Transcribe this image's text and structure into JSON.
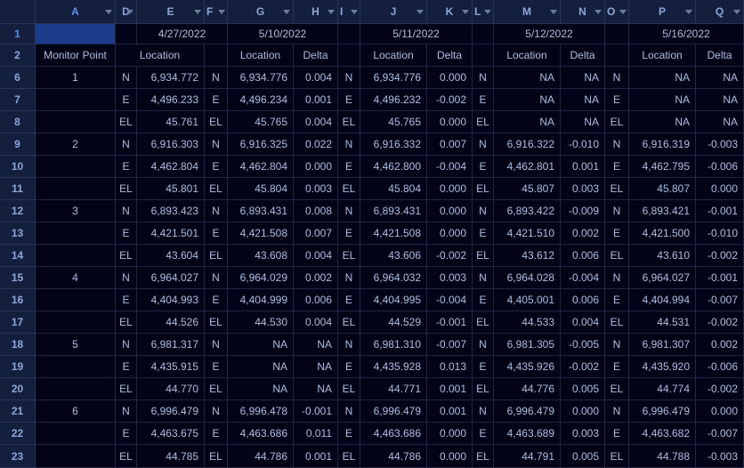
{
  "columns": [
    "A",
    "D",
    "E",
    "F",
    "G",
    "H",
    "I",
    "J",
    "K",
    "L",
    "M",
    "N",
    "O",
    "P",
    "Q"
  ],
  "dates": {
    "E": "4/27/2022",
    "G": "5/10/2022",
    "J": "5/11/2022",
    "M": "5/12/2022",
    "P": "5/16/2022"
  },
  "labels": {
    "monitor_point": "Monitor Point",
    "location": "Location",
    "delta": "Delta"
  },
  "row_numbers": [
    "1",
    "2",
    "6",
    "7",
    "8",
    "9",
    "10",
    "11",
    "12",
    "13",
    "14",
    "15",
    "16",
    "17",
    "18",
    "19",
    "20",
    "21",
    "22",
    "23"
  ],
  "rows": [
    {
      "A": "1",
      "D": "N",
      "E": "6,934.772",
      "F": "N",
      "G": "6,934.776",
      "H": "0.004",
      "I": "N",
      "J": "6,934.776",
      "K": "0.000",
      "L": "N",
      "M": "NA",
      "N": "NA",
      "O": "N",
      "P": "NA",
      "Q": "NA"
    },
    {
      "A": "",
      "D": "E",
      "E": "4,496.233",
      "F": "E",
      "G": "4,496.234",
      "H": "0.001",
      "I": "E",
      "J": "4,496.232",
      "K": "-0.002",
      "L": "E",
      "M": "NA",
      "N": "NA",
      "O": "E",
      "P": "NA",
      "Q": "NA"
    },
    {
      "A": "",
      "D": "EL",
      "E": "45.761",
      "F": "EL",
      "G": "45.765",
      "H": "0.004",
      "I": "EL",
      "J": "45.765",
      "K": "0.000",
      "L": "EL",
      "M": "NA",
      "N": "NA",
      "O": "EL",
      "P": "NA",
      "Q": "NA"
    },
    {
      "A": "2",
      "D": "N",
      "E": "6,916.303",
      "F": "N",
      "G": "6,916.325",
      "H": "0.022",
      "I": "N",
      "J": "6,916.332",
      "K": "0.007",
      "L": "N",
      "M": "6,916.322",
      "N": "-0.010",
      "O": "N",
      "P": "6,916.319",
      "Q": "-0.003"
    },
    {
      "A": "",
      "D": "E",
      "E": "4,462.804",
      "F": "E",
      "G": "4,462.804",
      "H": "0.000",
      "I": "E",
      "J": "4,462.800",
      "K": "-0.004",
      "L": "E",
      "M": "4,462.801",
      "N": "0.001",
      "O": "E",
      "P": "4,462.795",
      "Q": "-0.006"
    },
    {
      "A": "",
      "D": "EL",
      "E": "45.801",
      "F": "EL",
      "G": "45.804",
      "H": "0.003",
      "I": "EL",
      "J": "45.804",
      "K": "0.000",
      "L": "EL",
      "M": "45.807",
      "N": "0.003",
      "O": "EL",
      "P": "45.807",
      "Q": "0.000"
    },
    {
      "A": "3",
      "D": "N",
      "E": "6,893.423",
      "F": "N",
      "G": "6,893.431",
      "H": "0.008",
      "I": "N",
      "J": "6,893.431",
      "K": "0.000",
      "L": "N",
      "M": "6,893.422",
      "N": "-0.009",
      "O": "N",
      "P": "6,893.421",
      "Q": "-0.001"
    },
    {
      "A": "",
      "D": "E",
      "E": "4,421.501",
      "F": "E",
      "G": "4,421.508",
      "H": "0.007",
      "I": "E",
      "J": "4,421.508",
      "K": "0.000",
      "L": "E",
      "M": "4,421.510",
      "N": "0.002",
      "O": "E",
      "P": "4,421.500",
      "Q": "-0.010"
    },
    {
      "A": "",
      "D": "EL",
      "E": "43.604",
      "F": "EL",
      "G": "43.608",
      "H": "0.004",
      "I": "EL",
      "J": "43.606",
      "K": "-0.002",
      "L": "EL",
      "M": "43.612",
      "N": "0.006",
      "O": "EL",
      "P": "43.610",
      "Q": "-0.002"
    },
    {
      "A": "4",
      "D": "N",
      "E": "6,964.027",
      "F": "N",
      "G": "6,964.029",
      "H": "0.002",
      "I": "N",
      "J": "6,964.032",
      "K": "0.003",
      "L": "N",
      "M": "6,964.028",
      "N": "-0.004",
      "O": "N",
      "P": "6,964.027",
      "Q": "-0.001"
    },
    {
      "A": "",
      "D": "E",
      "E": "4,404.993",
      "F": "E",
      "G": "4,404.999",
      "H": "0.006",
      "I": "E",
      "J": "4,404.995",
      "K": "-0.004",
      "L": "E",
      "M": "4,405.001",
      "N": "0.006",
      "O": "E",
      "P": "4,404.994",
      "Q": "-0.007"
    },
    {
      "A": "",
      "D": "EL",
      "E": "44.526",
      "F": "EL",
      "G": "44.530",
      "H": "0.004",
      "I": "EL",
      "J": "44.529",
      "K": "-0.001",
      "L": "EL",
      "M": "44.533",
      "N": "0.004",
      "O": "EL",
      "P": "44.531",
      "Q": "-0.002"
    },
    {
      "A": "5",
      "D": "N",
      "E": "6,981.317",
      "F": "N",
      "G": "NA",
      "H": "NA",
      "I": "N",
      "J": "6,981.310",
      "K": "-0.007",
      "L": "N",
      "M": "6,981.305",
      "N": "-0.005",
      "O": "N",
      "P": "6,981.307",
      "Q": "0.002"
    },
    {
      "A": "",
      "D": "E",
      "E": "4,435.915",
      "F": "E",
      "G": "NA",
      "H": "NA",
      "I": "E",
      "J": "4,435.928",
      "K": "0.013",
      "L": "E",
      "M": "4,435.926",
      "N": "-0.002",
      "O": "E",
      "P": "4,435.920",
      "Q": "-0.006"
    },
    {
      "A": "",
      "D": "EL",
      "E": "44.770",
      "F": "EL",
      "G": "NA",
      "H": "NA",
      "I": "EL",
      "J": "44.771",
      "K": "0.001",
      "L": "EL",
      "M": "44.776",
      "N": "0.005",
      "O": "EL",
      "P": "44.774",
      "Q": "-0.002"
    },
    {
      "A": "6",
      "D": "N",
      "E": "6,996.479",
      "F": "N",
      "G": "6,996.478",
      "H": "-0.001",
      "I": "N",
      "J": "6,996.479",
      "K": "0.001",
      "L": "N",
      "M": "6,996.479",
      "N": "0.000",
      "O": "N",
      "P": "6,996.479",
      "Q": "0.000"
    },
    {
      "A": "",
      "D": "E",
      "E": "4,463.675",
      "F": "E",
      "G": "4,463.686",
      "H": "0.011",
      "I": "E",
      "J": "4,463.686",
      "K": "0.000",
      "L": "E",
      "M": "4,463.689",
      "N": "0.003",
      "O": "E",
      "P": "4,463.682",
      "Q": "-0.007"
    },
    {
      "A": "",
      "D": "EL",
      "E": "44.785",
      "F": "EL",
      "G": "44.786",
      "H": "0.001",
      "I": "EL",
      "J": "44.786",
      "K": "0.000",
      "L": "EL",
      "M": "44.791",
      "N": "0.005",
      "O": "EL",
      "P": "44.788",
      "Q": "-0.003"
    }
  ]
}
